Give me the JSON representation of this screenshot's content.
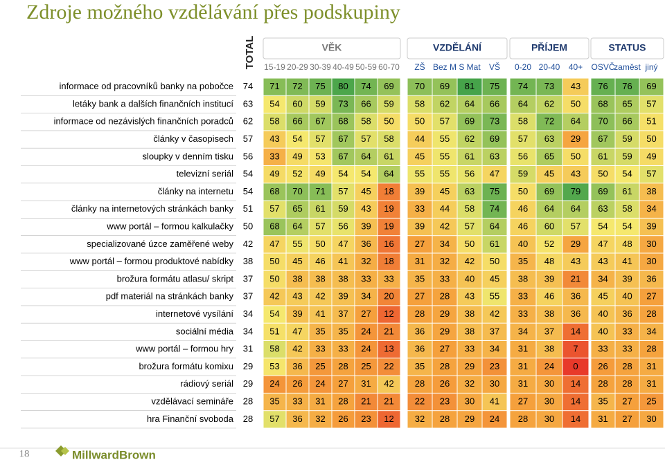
{
  "title": "Zdroje možného vzdělávání přes podskupiny",
  "columns": {
    "total": "TOTAL",
    "groups": [
      {
        "name": "VĚK",
        "columns": [
          "15-19",
          "20-29",
          "30-39",
          "40-49",
          "50-59",
          "60-70"
        ]
      },
      {
        "name": "VZDĚLÁNÍ",
        "columns": [
          "ZŠ",
          "Bez M",
          "S Mat",
          "VŠ"
        ]
      },
      {
        "name": "PŘÍJEM",
        "columns": [
          "0-20",
          "20-40",
          "40+"
        ]
      },
      {
        "name": "STATUS",
        "columns": [
          "OSVČ",
          "zaměst",
          "jiný"
        ]
      }
    ]
  },
  "rows": [
    {
      "label": "informace od pracovníků banky na pobočce",
      "values": [
        74,
        71,
        72,
        75,
        80,
        74,
        69,
        70,
        69,
        81,
        75,
        74,
        73,
        43,
        76,
        76,
        69
      ]
    },
    {
      "label": "letáky bank a dalších finančních institucí",
      "values": [
        63,
        54,
        60,
        59,
        73,
        66,
        59,
        58,
        62,
        64,
        66,
        64,
        62,
        50,
        68,
        65,
        57
      ]
    },
    {
      "label": "informace od nezávislých finančních poradců",
      "values": [
        62,
        58,
        66,
        67,
        68,
        58,
        50,
        50,
        57,
        69,
        73,
        58,
        72,
        64,
        70,
        66,
        51
      ]
    },
    {
      "label": "články v časopisech",
      "values": [
        57,
        43,
        54,
        57,
        67,
        57,
        58,
        44,
        55,
        62,
        69,
        57,
        63,
        29,
        67,
        59,
        50
      ]
    },
    {
      "label": "sloupky v denním tisku",
      "values": [
        56,
        33,
        49,
        53,
        67,
        64,
        61,
        45,
        55,
        61,
        63,
        56,
        65,
        50,
        61,
        59,
        49
      ]
    },
    {
      "label": "televizní seriál",
      "values": [
        54,
        49,
        52,
        49,
        54,
        54,
        64,
        55,
        55,
        56,
        47,
        59,
        45,
        43,
        50,
        54,
        57
      ]
    },
    {
      "label": "články na internetu",
      "values": [
        54,
        68,
        70,
        71,
        57,
        45,
        18,
        39,
        45,
        63,
        75,
        50,
        69,
        79,
        69,
        61,
        38
      ]
    },
    {
      "label": "články na internetových stránkách banky",
      "values": [
        51,
        57,
        65,
        61,
        59,
        43,
        19,
        33,
        44,
        58,
        74,
        46,
        64,
        64,
        63,
        58,
        34
      ]
    },
    {
      "label": "www portál – formou kalkulačky",
      "values": [
        50,
        68,
        64,
        57,
        56,
        39,
        19,
        39,
        42,
        57,
        64,
        46,
        60,
        57,
        54,
        54,
        39
      ]
    },
    {
      "label": "specializované úzce zaměřené weby",
      "values": [
        42,
        47,
        55,
        50,
        47,
        36,
        16,
        27,
        34,
        50,
        61,
        40,
        52,
        29,
        47,
        48,
        30
      ]
    },
    {
      "label": "www portál – formou produktové nabídky",
      "values": [
        38,
        50,
        45,
        46,
        41,
        32,
        18,
        31,
        32,
        42,
        50,
        35,
        48,
        43,
        43,
        41,
        30
      ]
    },
    {
      "label": "brožura formátu atlasu/ skript",
      "values": [
        37,
        50,
        38,
        38,
        38,
        33,
        33,
        35,
        33,
        40,
        45,
        38,
        39,
        21,
        34,
        39,
        36
      ]
    },
    {
      "label": "pdf materiál na stránkách banky",
      "values": [
        37,
        42,
        43,
        42,
        39,
        34,
        20,
        27,
        28,
        43,
        55,
        33,
        46,
        36,
        45,
        40,
        27
      ]
    },
    {
      "label": "internetové vysílání",
      "values": [
        34,
        54,
        39,
        41,
        37,
        27,
        12,
        28,
        29,
        38,
        42,
        33,
        38,
        36,
        40,
        36,
        28
      ]
    },
    {
      "label": "sociální média",
      "values": [
        34,
        51,
        47,
        35,
        35,
        24,
        21,
        36,
        29,
        38,
        37,
        34,
        37,
        14,
        40,
        33,
        34
      ]
    },
    {
      "label": "www portál – formou hry",
      "values": [
        31,
        58,
        42,
        33,
        33,
        24,
        13,
        36,
        27,
        33,
        34,
        31,
        38,
        7,
        33,
        33,
        28
      ]
    },
    {
      "label": "brožura formátu komixu",
      "values": [
        29,
        53,
        36,
        25,
        28,
        25,
        22,
        35,
        28,
        29,
        23,
        31,
        24,
        0,
        26,
        28,
        31
      ]
    },
    {
      "label": "rádiový seriál",
      "values": [
        29,
        24,
        26,
        24,
        27,
        31,
        42,
        28,
        26,
        32,
        30,
        31,
        30,
        14,
        28,
        28,
        31
      ]
    },
    {
      "label": "vzdělávací semináře",
      "values": [
        28,
        35,
        33,
        31,
        28,
        21,
        21,
        22,
        23,
        30,
        41,
        27,
        30,
        14,
        35,
        27,
        25
      ]
    },
    {
      "label": "hra Finanční svoboda",
      "values": [
        28,
        57,
        36,
        32,
        26,
        23,
        12,
        32,
        28,
        29,
        24,
        28,
        30,
        14,
        31,
        27,
        30
      ]
    }
  ],
  "footer": {
    "page": "18",
    "brand": "MillwardBrown"
  }
}
